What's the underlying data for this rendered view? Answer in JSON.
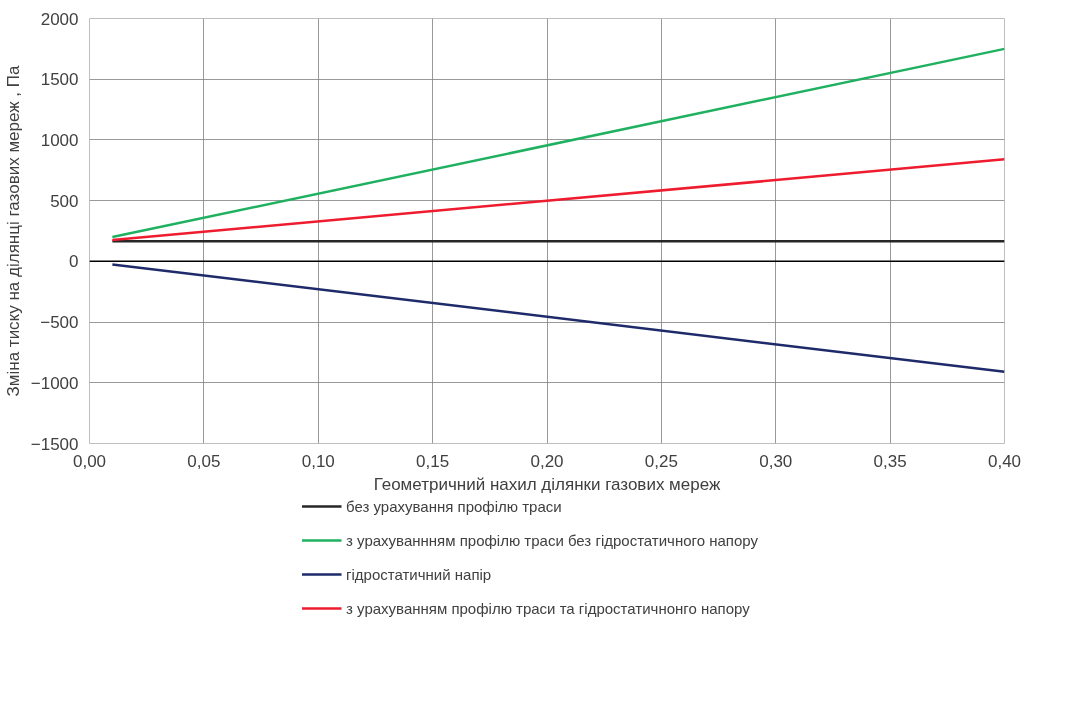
{
  "chart_data": {
    "type": "line",
    "xlabel": "Геометричний нахил ділянки газових мереж",
    "ylabel": "Зміна тиску на ділянці газових мереж , Па",
    "x": [
      0.01,
      0.4
    ],
    "series": [
      {
        "name": "без урахування профілю траси",
        "color": "#262626",
        "values": [
          165,
          165
        ]
      },
      {
        "name": "з урахуваннням профілю траси без гідростатичного напору",
        "color": "#1fb060",
        "values": [
          200,
          1750
        ]
      },
      {
        "name": "гідростатичний напір",
        "color": "#1f2a6a",
        "values": [
          -25,
          -910
        ]
      },
      {
        "name": "з урахуванням профілю траси та гідростатичнонго напору",
        "color": "#ee1c2e",
        "values": [
          175,
          840
        ]
      }
    ],
    "xlim": [
      0,
      0.4
    ],
    "xticks": [
      {
        "value": 0,
        "label": "0,00"
      },
      {
        "value": 0.05,
        "label": "0,05"
      },
      {
        "value": 0.1,
        "label": "0,10"
      },
      {
        "value": 0.15,
        "label": "0,15"
      },
      {
        "value": 0.2,
        "label": "0,20"
      },
      {
        "value": 0.25,
        "label": "0,25"
      },
      {
        "value": 0.3,
        "label": "0,30"
      },
      {
        "value": 0.35,
        "label": "0,35"
      },
      {
        "value": 0.4,
        "label": "0,40"
      }
    ],
    "ylim": [
      -1500,
      2000
    ],
    "yticks": [
      -1500,
      -1000,
      -500,
      0,
      500,
      1000,
      1500,
      2000
    ],
    "ref_lines": [
      {
        "axis": "y",
        "value": 0,
        "color": "#000000"
      }
    ],
    "grid": true,
    "legend": "bottom",
    "marker": "none",
    "line_style": "solid"
  }
}
